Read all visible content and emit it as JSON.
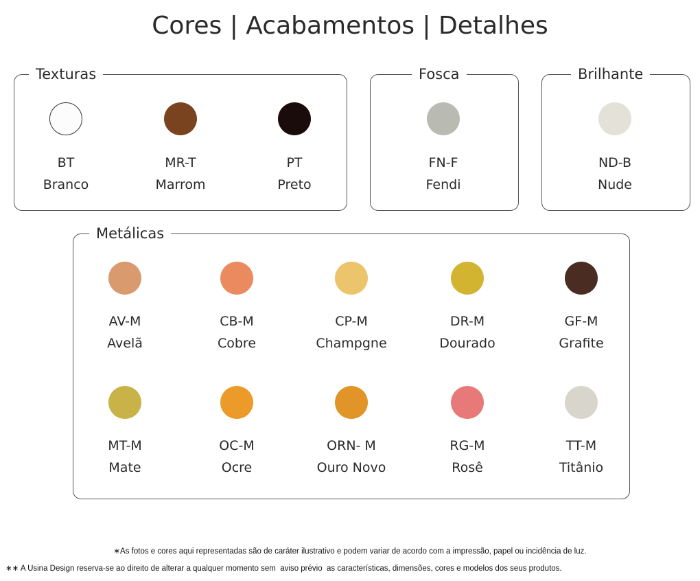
{
  "header": {
    "title": "Cores | Acabamentos | Detalhes"
  },
  "groups": [
    {
      "label": "Texturas",
      "items": [
        {
          "code": "BT",
          "name": "Branco",
          "color": "#fcfcfc"
        },
        {
          "code": "MR-T",
          "name": "Marrom",
          "color": "#7a4320"
        },
        {
          "code": "PT",
          "name": "Preto",
          "color": "#1a0c0a"
        }
      ]
    },
    {
      "label": "Fosca",
      "items": [
        {
          "code": "FN-F",
          "name": "Fendi",
          "color": "#b9bab2"
        }
      ]
    },
    {
      "label": "Brilhante",
      "items": [
        {
          "code": "ND-B",
          "name": "Nude",
          "color": "#e4e1d9"
        }
      ]
    },
    {
      "label": "Metálicas",
      "items": [
        {
          "code": "AV-M",
          "name": "Avelã",
          "color": "#d99a6e"
        },
        {
          "code": "CB-M",
          "name": "Cobre",
          "color": "#ea8a5e"
        },
        {
          "code": "CP-M",
          "name": "Champgne",
          "color": "#ebc46c"
        },
        {
          "code": "DR-M",
          "name": "Dourado",
          "color": "#d2b431"
        },
        {
          "code": "GF-M",
          "name": "Grafite",
          "color": "#4a2c22"
        },
        {
          "code": "MT-M",
          "name": "Mate",
          "color": "#c9b348"
        },
        {
          "code": "OC-M",
          "name": "Ocre",
          "color": "#ec9b2a"
        },
        {
          "code": "ORN- M",
          "name": "Ouro Novo",
          "color": "#e19428"
        },
        {
          "code": "RG-M",
          "name": "Rosê",
          "color": "#e77a78"
        },
        {
          "code": "TT-M",
          "name": "Titânio",
          "color": "#d8d6cc"
        }
      ]
    }
  ],
  "footnotes": [
    "∗As fotos e cores aqui representadas são de caráter ilustrativo e podem variar de acordo com a impressão, papel ou incidência de luz.",
    "∗∗ A Usina Design reserva-se ao direito de alterar a qualquer momento sem  aviso prévio  as características, dimensões, cores e modelos dos seus produtos."
  ]
}
